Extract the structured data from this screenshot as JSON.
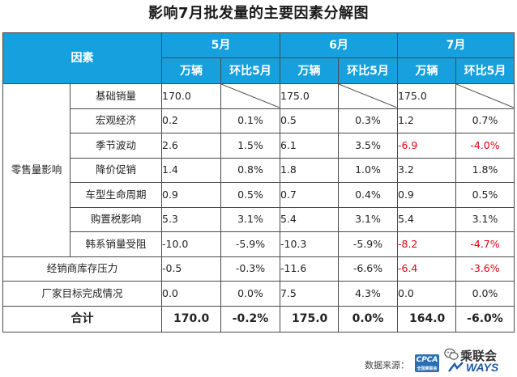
{
  "title": "影响7月批发量的主要因素分解图",
  "table": {
    "factor_header": "因素",
    "months": [
      "5月",
      "6月",
      "7月"
    ],
    "sub_headers": {
      "units": "万辆",
      "mom": "环比5月"
    },
    "group_label": "零售量影响",
    "group_rows": [
      {
        "label": "基础销量",
        "may": [
          "170.0",
          ""
        ],
        "jun": [
          "175.0",
          ""
        ],
        "jul": [
          "175.0",
          ""
        ],
        "neg": [
          false,
          false,
          false,
          false,
          false,
          false
        ]
      },
      {
        "label": "宏观经济",
        "may": [
          "0.2",
          "0.1%"
        ],
        "jun": [
          "0.5",
          "0.3%"
        ],
        "jul": [
          "1.2",
          "0.7%"
        ],
        "neg": [
          false,
          false,
          false,
          false,
          false,
          false
        ]
      },
      {
        "label": "季节波动",
        "may": [
          "2.6",
          "1.5%"
        ],
        "jun": [
          "6.1",
          "3.5%"
        ],
        "jul": [
          "-6.9",
          "-4.0%"
        ],
        "neg": [
          false,
          false,
          false,
          false,
          true,
          true
        ]
      },
      {
        "label": "降价促销",
        "may": [
          "1.4",
          "0.8%"
        ],
        "jun": [
          "1.8",
          "1.0%"
        ],
        "jul": [
          "3.2",
          "1.8%"
        ],
        "neg": [
          false,
          false,
          false,
          false,
          false,
          false
        ]
      },
      {
        "label": "车型生命周期",
        "may": [
          "0.9",
          "0.5%"
        ],
        "jun": [
          "0.7",
          "0.4%"
        ],
        "jul": [
          "0.9",
          "0.5%"
        ],
        "neg": [
          false,
          false,
          false,
          false,
          false,
          false
        ]
      },
      {
        "label": "购置税影响",
        "may": [
          "5.3",
          "3.1%"
        ],
        "jun": [
          "5.4",
          "3.1%"
        ],
        "jul": [
          "5.4",
          "3.1%"
        ],
        "neg": [
          false,
          false,
          false,
          false,
          false,
          false
        ]
      },
      {
        "label": "韩系销量受阻",
        "may": [
          "-10.0",
          "-5.9%"
        ],
        "jun": [
          "-10.3",
          "-5.9%"
        ],
        "jul": [
          "-8.2",
          "-4.7%"
        ],
        "neg": [
          false,
          false,
          false,
          false,
          true,
          true
        ]
      }
    ],
    "other_rows": [
      {
        "label": "经销商库存压力",
        "may": [
          "-0.5",
          "-0.3%"
        ],
        "jun": [
          "-11.6",
          "-6.6%"
        ],
        "jul": [
          "-6.4",
          "-3.6%"
        ],
        "neg": [
          false,
          false,
          false,
          false,
          true,
          true
        ]
      },
      {
        "label": "厂家目标完成情况",
        "may": [
          "0.0",
          "0.0%"
        ],
        "jun": [
          "7.5",
          "4.3%"
        ],
        "jul": [
          "0.0",
          "0.0%"
        ],
        "neg": [
          false,
          false,
          false,
          false,
          false,
          false
        ]
      }
    ],
    "total": {
      "label": "合计",
      "may": [
        "170.0",
        "-0.2%"
      ],
      "jun": [
        "175.0",
        "0.0%"
      ],
      "jul": [
        "164.0",
        "-6.0%"
      ]
    },
    "colors": {
      "header_bg": "#16a0dd",
      "header_text": "#ffffff",
      "negative": "#e60012"
    }
  },
  "footer": {
    "source_label": "数据来源：",
    "cpca_logo": "CPCA",
    "cpca_sub": "全国乘联会",
    "wechat_name": "乘联会",
    "ways_logo": "WAYS"
  }
}
